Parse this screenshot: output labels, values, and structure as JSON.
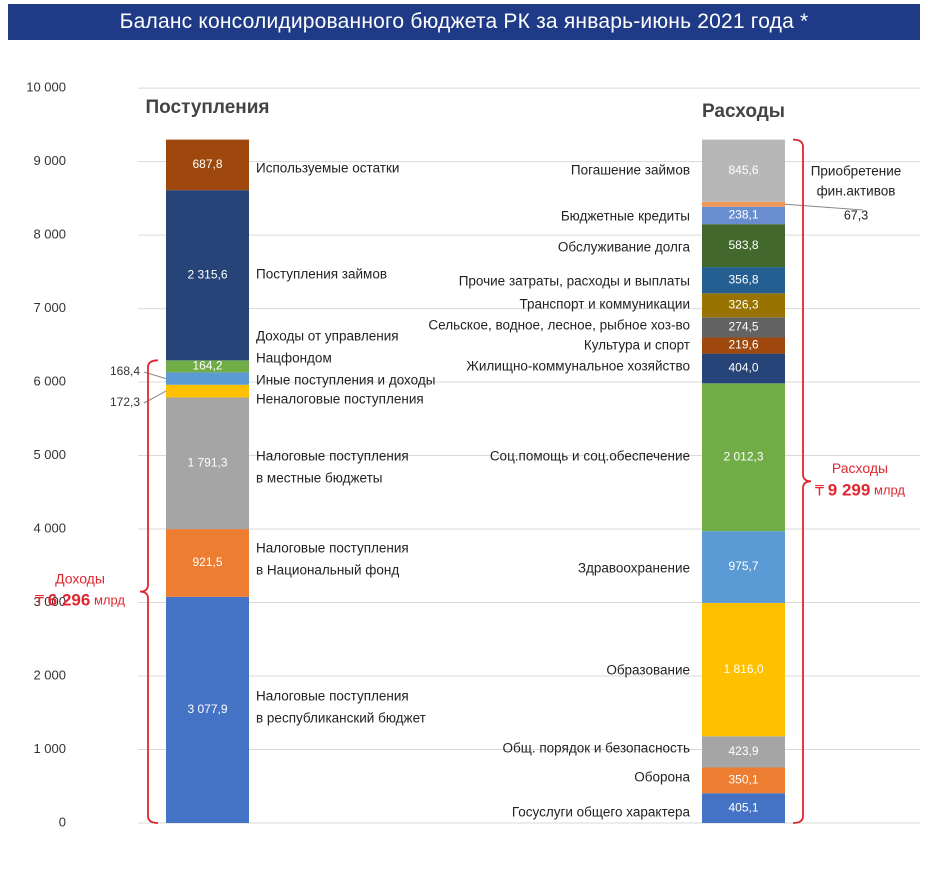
{
  "chart_data": {
    "type": "bar",
    "subtype": "stacked",
    "title": "Баланс консолидированного бюджета РК за январь-июнь 2021 года *",
    "ylim": [
      0,
      10000
    ],
    "yticks": [
      0,
      1000,
      2000,
      3000,
      4000,
      5000,
      6000,
      7000,
      8000,
      9000,
      10000
    ],
    "ytick_labels": [
      "0",
      "1 000",
      "2 000",
      "3 000",
      "4 000",
      "5 000",
      "6 000",
      "7 000",
      "8 000",
      "9 000",
      "10 000"
    ],
    "grid": true,
    "categories": [
      "Поступления",
      "Расходы"
    ],
    "stacks": [
      {
        "name": "Поступления",
        "segments": [
          {
            "label": [
              "Налоговые поступления",
              "в республиканский бюджет"
            ],
            "value": 3077.9,
            "value_label": "3 077,9",
            "color": "#4472c4"
          },
          {
            "label": [
              "Налоговые поступления",
              "в Национальный фонд"
            ],
            "value": 921.5,
            "value_label": "921,5",
            "color": "#ed7d31"
          },
          {
            "label": [
              "Налоговые поступления",
              "в местные бюджеты"
            ],
            "value": 1791.3,
            "value_label": "1 791,3",
            "color": "#a5a5a5"
          },
          {
            "label": [
              "Неналоговые поступления"
            ],
            "value": 172.3,
            "value_label": "172,3",
            "color": "#ffc000"
          },
          {
            "label": [
              "Иные поступления и доходы"
            ],
            "value": 168.4,
            "value_label": "168,4",
            "color": "#5b9bd5"
          },
          {
            "label": [
              "Доходы от управления",
              "Нацфондом"
            ],
            "value": 164.2,
            "value_label": "164,2",
            "color": "#70ad47"
          },
          {
            "label": [
              "Поступления займов"
            ],
            "value": 2315.6,
            "value_label": "2 315,6",
            "color": "#264478"
          },
          {
            "label": [
              "Используемые остатки"
            ],
            "value": 687.8,
            "value_label": "687,8",
            "color": "#9e480e"
          }
        ]
      },
      {
        "name": "Расходы",
        "segments": [
          {
            "label": [
              "Госуслуги общего характера"
            ],
            "value": 405.1,
            "value_label": "405,1",
            "color": "#4472c4"
          },
          {
            "label": [
              "Оборона"
            ],
            "value": 350.1,
            "value_label": "350,1",
            "color": "#ed7d31"
          },
          {
            "label": [
              "Общ. порядок и безопасность"
            ],
            "value": 423.9,
            "value_label": "423,9",
            "color": "#a5a5a5"
          },
          {
            "label": [
              "Образование"
            ],
            "value": 1816.0,
            "value_label": "1 816,0",
            "color": "#ffc000"
          },
          {
            "label": [
              "Здравоохранение"
            ],
            "value": 975.7,
            "value_label": "975,7",
            "color": "#5b9bd5"
          },
          {
            "label": [
              "Соц.помощь и соц.обеспечение"
            ],
            "value": 2012.3,
            "value_label": "2 012,3",
            "color": "#70ad47"
          },
          {
            "label": [
              "Жилищно-коммунальное хозяйство"
            ],
            "value": 404.0,
            "value_label": "404,0",
            "color": "#264478"
          },
          {
            "label": [
              "Культура и спорт"
            ],
            "value": 219.6,
            "value_label": "219,6",
            "color": "#9e480e"
          },
          {
            "label": [
              "Сельское, водное, лесное, рыбное хоз-во"
            ],
            "value": 274.5,
            "value_label": "274,5",
            "color": "#636363"
          },
          {
            "label": [
              "Транспорт и коммуникации"
            ],
            "value": 326.3,
            "value_label": "326,3",
            "color": "#997300"
          },
          {
            "label": [
              "Прочие затраты, расходы и выплаты"
            ],
            "value": 356.8,
            "value_label": "356,8",
            "color": "#255e91"
          },
          {
            "label": [
              "Обслуживание долга"
            ],
            "value": 583.8,
            "value_label": "583,8",
            "color": "#43682b"
          },
          {
            "label": [
              "Бюджетные кредиты"
            ],
            "value": 238.1,
            "value_label": "238,1",
            "color": "#698ed0"
          },
          {
            "label": [
              "Приобретение",
              "фин.активов"
            ],
            "value": 67.3,
            "value_label": "67,3",
            "color": "#f1975a"
          },
          {
            "label": [
              "Погашение займов"
            ],
            "value": 845.6,
            "value_label": "845,6",
            "color": "#b7b7b7"
          }
        ]
      }
    ],
    "annotations": {
      "income": {
        "label": "Доходы",
        "currency": "₸",
        "amount": "6 296",
        "unit": "млрд",
        "from": 0,
        "to": 6296
      },
      "expenses": {
        "label": "Расходы",
        "currency": "₸",
        "amount": "9 299",
        "unit": "млрд",
        "from": 0,
        "to": 9299
      }
    },
    "colors": {
      "header": "#1f3b87",
      "bracket": "#e0262f",
      "grid": "#d9d9d9",
      "axis_text": "#333333"
    }
  }
}
